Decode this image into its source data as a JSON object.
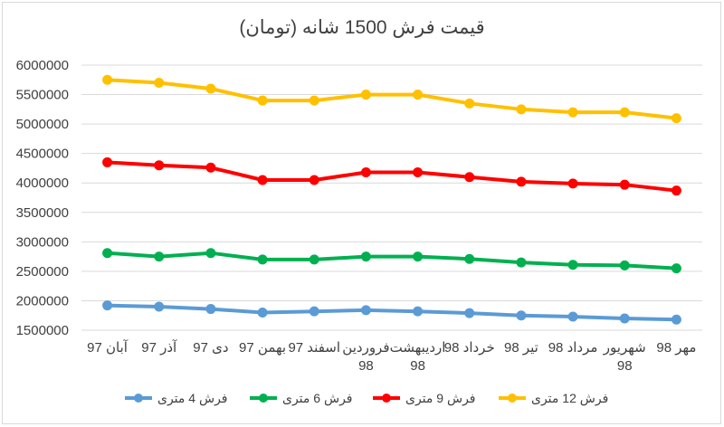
{
  "chart_data": {
    "type": "line",
    "title": "قیمت فرش 1500 شانه (تومان)",
    "categories": [
      [
        "آبان 97"
      ],
      [
        "آذر 97"
      ],
      [
        "دی 97"
      ],
      [
        "بهمن 97"
      ],
      [
        "اسفند 97"
      ],
      [
        "فروردین",
        "98"
      ],
      [
        "اردیبهشت",
        "98"
      ],
      [
        "خرداد 98"
      ],
      [
        "تیر 98"
      ],
      [
        "مرداد 98"
      ],
      [
        "شهریور",
        "98"
      ],
      [
        "مهر 98"
      ]
    ],
    "ylim": [
      1500000,
      6000000
    ],
    "yticks": [
      "6000000",
      "5500000",
      "5000000",
      "4500000",
      "4000000",
      "3500000",
      "3000000",
      "2500000",
      "2000000",
      "1500000"
    ],
    "grid": true,
    "legend_position": "bottom",
    "series": [
      {
        "name": "فرش 4 متری",
        "color": "#5b9bd5",
        "values": [
          1920000,
          1900000,
          1860000,
          1800000,
          1820000,
          1840000,
          1820000,
          1790000,
          1750000,
          1730000,
          1700000,
          1680000
        ]
      },
      {
        "name": "فرش 6 متری",
        "color": "#00b050",
        "values": [
          2810000,
          2750000,
          2810000,
          2700000,
          2700000,
          2750000,
          2750000,
          2710000,
          2650000,
          2610000,
          2600000,
          2550000
        ]
      },
      {
        "name": "فرش 9 متری",
        "color": "#ff0000",
        "values": [
          4350000,
          4300000,
          4260000,
          4050000,
          4050000,
          4180000,
          4180000,
          4100000,
          4020000,
          3990000,
          3970000,
          3870000
        ]
      },
      {
        "name": "فرش 12 متری",
        "color": "#ffc000",
        "values": [
          5750000,
          5700000,
          5600000,
          5400000,
          5400000,
          5500000,
          5500000,
          5350000,
          5250000,
          5200000,
          5200000,
          5100000
        ]
      }
    ]
  }
}
